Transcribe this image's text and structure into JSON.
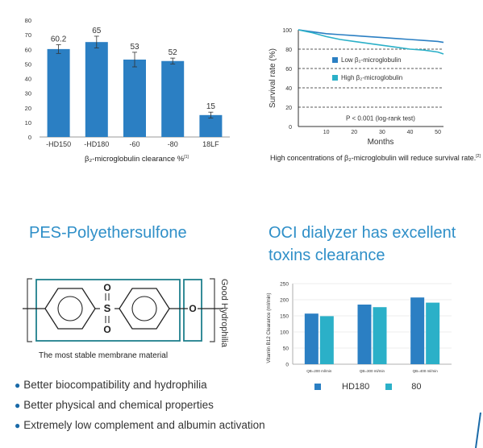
{
  "colors": {
    "bar_blue": "#2b7fc3",
    "bar_teal": "#2bb0c8",
    "heading_blue": "#2f8fc8",
    "frame_teal": "#1f7f8c"
  },
  "clearance_chart": {
    "type": "bar",
    "categories": [
      "-HD150",
      "-HD180",
      "-60",
      "-80",
      "18LF"
    ],
    "values": [
      60.2,
      65,
      53,
      52,
      15
    ],
    "value_labels": [
      "60.2",
      "65",
      "53",
      "52",
      "15"
    ],
    "errors": [
      3,
      4,
      5,
      2,
      2
    ],
    "ylim": [
      0,
      80
    ],
    "yticks": [
      "0",
      "10",
      "20",
      "30",
      "40",
      "50",
      "60",
      "70",
      "80"
    ],
    "xlabel": "β₂-microglobulin clearance %",
    "xlabel_ref": "[1]"
  },
  "survival_chart": {
    "type": "line",
    "ylabel": "Survival rate (%)",
    "xlabel": "Months",
    "yticks": [
      "0",
      "20",
      "40",
      "60",
      "80",
      "100"
    ],
    "xticks": [
      "10",
      "20",
      "30",
      "40",
      "50"
    ],
    "xlim": [
      0,
      52
    ],
    "ylim": [
      0,
      100
    ],
    "series": [
      {
        "name": "Low β₂-microglobulin",
        "color": "#2b7fc3",
        "x": [
          0,
          5,
          10,
          15,
          20,
          25,
          30,
          35,
          40,
          45,
          50,
          52
        ],
        "y": [
          100,
          98,
          96,
          95,
          94,
          93,
          92,
          91,
          90,
          89,
          88,
          87
        ]
      },
      {
        "name": "High β₂-microglobulin",
        "color": "#2bb0c8",
        "x": [
          0,
          5,
          10,
          15,
          20,
          25,
          30,
          35,
          40,
          45,
          50,
          52
        ],
        "y": [
          100,
          97,
          93,
          90,
          88,
          86,
          84,
          82,
          80,
          79,
          77,
          75
        ]
      }
    ],
    "annotation": "P < 0.001 (log-rank test)",
    "caption": "High concentrations of β₂-microglobulin will reduce survival rate.",
    "caption_ref": "[2]"
  },
  "pes": {
    "heading": "PES-Polyethersulfone",
    "side_label": "Good Hydrophilia",
    "caption": "The most stable membrane material",
    "atoms": {
      "o": "O",
      "s": "S"
    }
  },
  "oci": {
    "heading_line1": "OCI dialyzer has excellent",
    "heading_line2": "toxins clearance"
  },
  "vitb12_chart": {
    "type": "bar",
    "ylabel": "Vitamin B12 Clearance (ml/min)",
    "categories": [
      "QB=200 ml/min",
      "QB=300 ml/min",
      "QB=400 ml/min"
    ],
    "yticks": [
      "0",
      "50",
      "100",
      "150",
      "200",
      "250"
    ],
    "ylim": [
      0,
      250
    ],
    "series": [
      {
        "name": "HD180",
        "color": "#2b7fc3",
        "values": [
          157,
          185,
          207
        ]
      },
      {
        "name": "80",
        "color": "#2bb0c8",
        "values": [
          149,
          177,
          191
        ]
      }
    ]
  },
  "bullets": [
    "Better biocompatibility and hydrophilia",
    "Better physical and chemical properties",
    "Extremely low complement and albumin activation"
  ]
}
